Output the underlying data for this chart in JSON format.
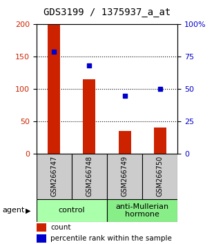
{
  "title": "GDS3199 / 1375937_a_at",
  "samples": [
    "GSM266747",
    "GSM266748",
    "GSM266749",
    "GSM266750"
  ],
  "counts": [
    200,
    115,
    35,
    40
  ],
  "percentiles": [
    79,
    68,
    45,
    50
  ],
  "bar_color": "#cc2200",
  "dot_color": "#0000cc",
  "ylim_left": [
    0,
    200
  ],
  "ylim_right": [
    0,
    100
  ],
  "yticks_left": [
    0,
    50,
    100,
    150,
    200
  ],
  "yticks_right": [
    0,
    25,
    50,
    75,
    100
  ],
  "ytick_labels_right": [
    "0",
    "25",
    "50",
    "75",
    "100%"
  ],
  "groups": [
    {
      "label": "control",
      "samples": [
        0,
        1
      ],
      "color": "#aaffaa"
    },
    {
      "label": "anti-Mullerian\nhormone",
      "samples": [
        2,
        3
      ],
      "color": "#88ee88"
    }
  ],
  "agent_label": "agent",
  "legend_count_label": "count",
  "legend_pct_label": "percentile rank within the sample",
  "bg_sample_box": "#cccccc",
  "title_fontsize": 10,
  "tick_fontsize": 8,
  "sample_fontsize": 7,
  "group_fontsize": 8,
  "legend_fontsize": 7.5,
  "bar_width": 0.35
}
